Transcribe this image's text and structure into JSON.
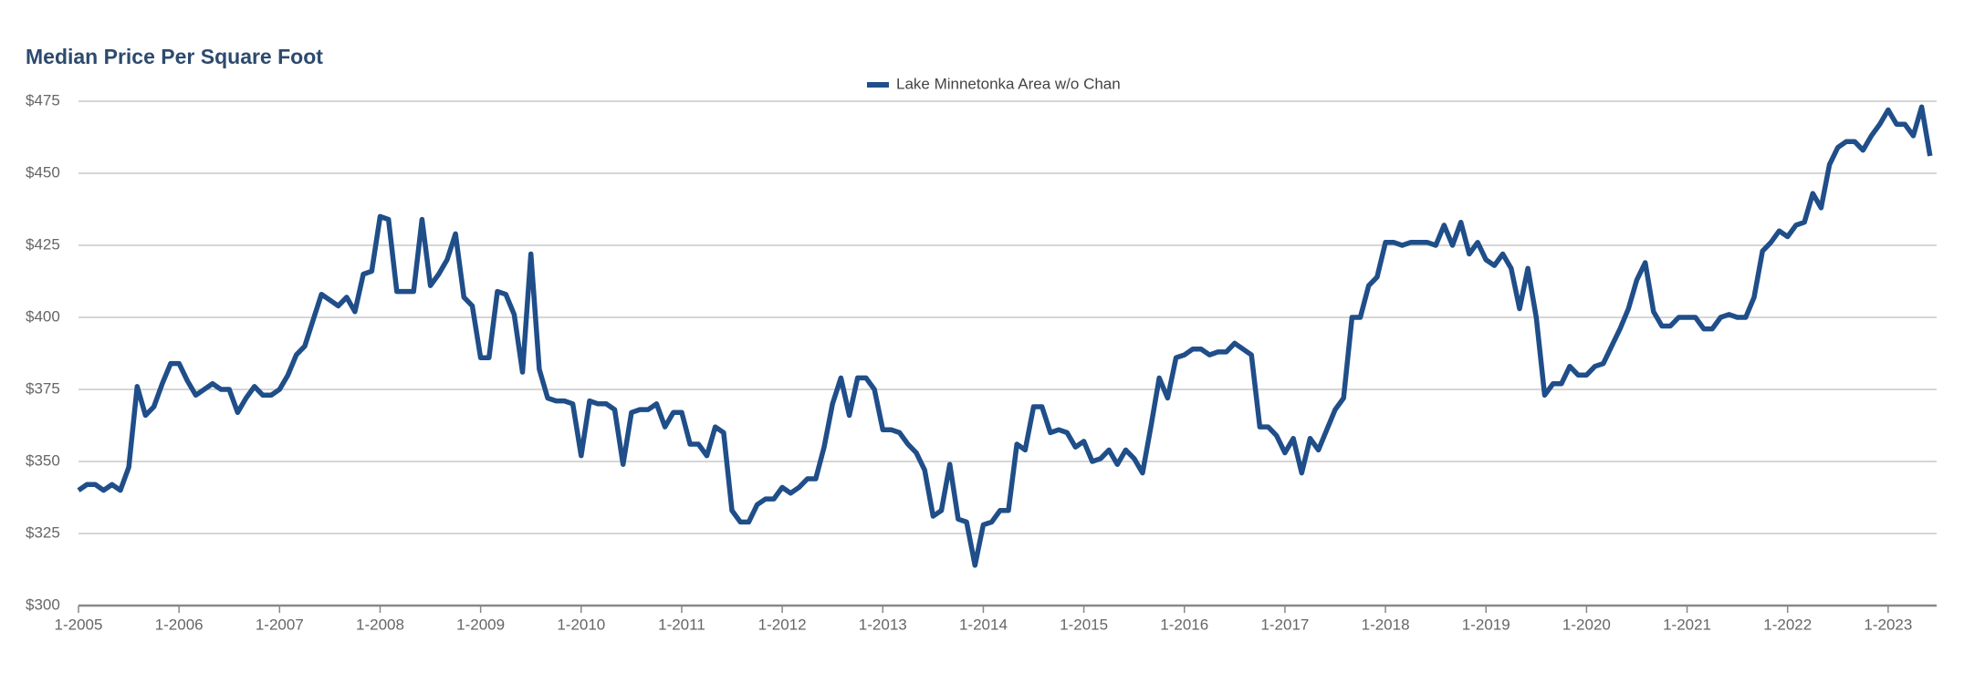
{
  "chart_data": {
    "type": "line",
    "title": "Median Price Per Square Foot",
    "categories": [
      "1-2005",
      null,
      null,
      null,
      null,
      null,
      null,
      null,
      null,
      null,
      null,
      null,
      "1-2006",
      null,
      null,
      null,
      null,
      null,
      null,
      null,
      null,
      null,
      null,
      null,
      "1-2007",
      null,
      null,
      null,
      null,
      null,
      null,
      null,
      null,
      null,
      null,
      null,
      "1-2008",
      null,
      null,
      null,
      null,
      null,
      null,
      null,
      null,
      null,
      null,
      null,
      "1-2009",
      null,
      null,
      null,
      null,
      null,
      null,
      null,
      null,
      null,
      null,
      null,
      "1-2010",
      null,
      null,
      null,
      null,
      null,
      null,
      null,
      null,
      null,
      null,
      null,
      "1-2011",
      null,
      null,
      null,
      null,
      null,
      null,
      null,
      null,
      null,
      null,
      null,
      "1-2012",
      null,
      null,
      null,
      null,
      null,
      null,
      null,
      null,
      null,
      null,
      null,
      "1-2013",
      null,
      null,
      null,
      null,
      null,
      null,
      null,
      null,
      null,
      null,
      null,
      "1-2014",
      null,
      null,
      null,
      null,
      null,
      null,
      null,
      null,
      null,
      null,
      null,
      "1-2015",
      null,
      null,
      null,
      null,
      null,
      null,
      null,
      null,
      null,
      null,
      null,
      "1-2016",
      null,
      null,
      null,
      null,
      null,
      null,
      null,
      null,
      null,
      null,
      null,
      "1-2017",
      null,
      null,
      null,
      null,
      null,
      null,
      null,
      null,
      null,
      null,
      null,
      "1-2018",
      null,
      null,
      null,
      null,
      null,
      null,
      null,
      null,
      null,
      null,
      null,
      "1-2019",
      null,
      null,
      null,
      null,
      null,
      null,
      null,
      null,
      null,
      null,
      null,
      "1-2020",
      null,
      null,
      null,
      null,
      null,
      null,
      null,
      null,
      null,
      null,
      null,
      "1-2021",
      null,
      null,
      null,
      null,
      null,
      null,
      null,
      null,
      null,
      null,
      null,
      "1-2022",
      null,
      null,
      null,
      null,
      null,
      null,
      null,
      null,
      null,
      null,
      null,
      "1-2023",
      null,
      null,
      null,
      null,
      null
    ],
    "series": [
      {
        "name": "Lake Minnetonka Area w/o Chan",
        "color": "#1f4e89",
        "values": [
          340,
          342,
          342,
          340,
          342,
          340,
          348,
          376,
          366,
          369,
          377,
          384,
          384,
          378,
          373,
          375,
          377,
          375,
          375,
          367,
          372,
          376,
          373,
          373,
          375,
          380,
          387,
          390,
          399,
          408,
          406,
          404,
          407,
          402,
          415,
          416,
          435,
          434,
          409,
          409,
          409,
          434,
          411,
          415,
          420,
          429,
          407,
          404,
          386,
          386,
          409,
          408,
          401,
          381,
          422,
          382,
          372,
          371,
          371,
          370,
          352,
          371,
          370,
          370,
          368,
          349,
          367,
          368,
          368,
          370,
          362,
          367,
          367,
          356,
          356,
          352,
          362,
          360,
          333,
          329,
          329,
          335,
          337,
          337,
          341,
          339,
          341,
          344,
          344,
          355,
          370,
          379,
          366,
          379,
          379,
          375,
          361,
          361,
          360,
          356,
          353,
          347,
          331,
          333,
          349,
          330,
          329,
          314,
          328,
          329,
          333,
          333,
          356,
          354,
          369,
          369,
          360,
          361,
          360,
          355,
          357,
          350,
          351,
          354,
          349,
          354,
          351,
          346,
          362,
          379,
          372,
          386,
          387,
          389,
          389,
          387,
          388,
          388,
          391,
          389,
          387,
          362,
          362,
          359,
          353,
          358,
          346,
          358,
          354,
          361,
          368,
          372,
          400,
          400,
          411,
          414,
          426,
          426,
          425,
          426,
          426,
          426,
          425,
          432,
          425,
          433,
          422,
          426,
          420,
          418,
          422,
          417,
          403,
          417,
          400,
          373,
          377,
          377,
          383,
          380,
          380,
          383,
          384,
          390,
          396,
          403,
          413,
          419,
          402,
          397,
          397,
          400,
          400,
          400,
          396,
          396,
          400,
          401,
          400,
          400,
          407,
          423,
          426,
          430,
          428,
          432,
          433,
          443,
          438,
          453,
          459,
          461,
          461,
          458,
          463,
          467,
          472,
          467,
          467,
          463,
          473,
          456
        ]
      }
    ],
    "ylim": [
      300,
      475
    ],
    "yticks": [
      {
        "value": 300,
        "label": "$300"
      },
      {
        "value": 325,
        "label": "$325"
      },
      {
        "value": 350,
        "label": "$350"
      },
      {
        "value": 375,
        "label": "$375"
      },
      {
        "value": 400,
        "label": "$400"
      },
      {
        "value": 425,
        "label": "$425"
      },
      {
        "value": 450,
        "label": "$450"
      },
      {
        "value": 475,
        "label": "$475"
      }
    ],
    "grid": true,
    "legend": "top"
  }
}
